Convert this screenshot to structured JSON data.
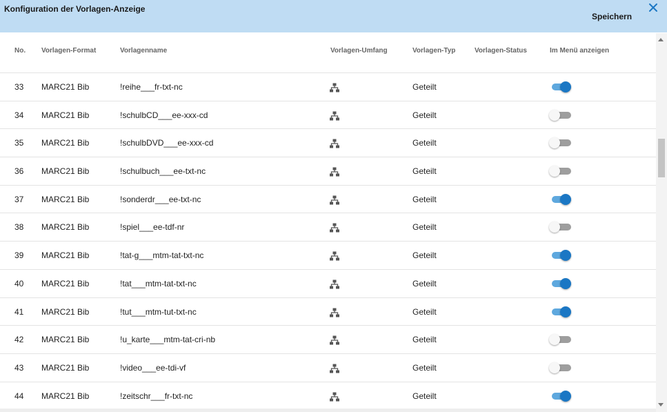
{
  "dialog": {
    "title": "Konfiguration der Vorlagen-Anzeige",
    "save_label": "Speichern",
    "close_icon": "close-icon",
    "accent_color": "#1b77c4",
    "header_color": "#bfdcf3"
  },
  "table": {
    "headers": {
      "no": "No.",
      "format": "Vorlagen-Format",
      "name": "Vorlagenname",
      "scope": "Vorlagen-Umfang",
      "type": "Vorlagen-Typ",
      "status": "Vorlagen-Status",
      "menu": "Im Menü anzeigen"
    },
    "rows": [
      {
        "no": "33",
        "format": "MARC21 Bib",
        "name": "!reihe___fr-txt-nc",
        "scope_icon": "hierarchy-icon",
        "type": "Geteilt",
        "status": "",
        "in_menu": true
      },
      {
        "no": "34",
        "format": "MARC21 Bib",
        "name": "!schulbCD___ee-xxx-cd",
        "scope_icon": "hierarchy-icon",
        "type": "Geteilt",
        "status": "",
        "in_menu": false
      },
      {
        "no": "35",
        "format": "MARC21 Bib",
        "name": "!schulbDVD___ee-xxx-cd",
        "scope_icon": "hierarchy-icon",
        "type": "Geteilt",
        "status": "",
        "in_menu": false
      },
      {
        "no": "36",
        "format": "MARC21 Bib",
        "name": "!schulbuch___ee-txt-nc",
        "scope_icon": "hierarchy-icon",
        "type": "Geteilt",
        "status": "",
        "in_menu": false
      },
      {
        "no": "37",
        "format": "MARC21 Bib",
        "name": "!sonderdr___ee-txt-nc",
        "scope_icon": "hierarchy-icon",
        "type": "Geteilt",
        "status": "",
        "in_menu": true
      },
      {
        "no": "38",
        "format": "MARC21 Bib",
        "name": "!spiel___ee-tdf-nr",
        "scope_icon": "hierarchy-icon",
        "type": "Geteilt",
        "status": "",
        "in_menu": false
      },
      {
        "no": "39",
        "format": "MARC21 Bib",
        "name": "!tat-g___mtm-tat-txt-nc",
        "scope_icon": "hierarchy-icon",
        "type": "Geteilt",
        "status": "",
        "in_menu": true
      },
      {
        "no": "40",
        "format": "MARC21 Bib",
        "name": "!tat___mtm-tat-txt-nc",
        "scope_icon": "hierarchy-icon",
        "type": "Geteilt",
        "status": "",
        "in_menu": true
      },
      {
        "no": "41",
        "format": "MARC21 Bib",
        "name": "!tut___mtm-tut-txt-nc",
        "scope_icon": "hierarchy-icon",
        "type": "Geteilt",
        "status": "",
        "in_menu": true
      },
      {
        "no": "42",
        "format": "MARC21 Bib",
        "name": "!u_karte___mtm-tat-cri-nb",
        "scope_icon": "hierarchy-icon",
        "type": "Geteilt",
        "status": "",
        "in_menu": false
      },
      {
        "no": "43",
        "format": "MARC21 Bib",
        "name": "!video___ee-tdi-vf",
        "scope_icon": "hierarchy-icon",
        "type": "Geteilt",
        "status": "",
        "in_menu": false
      },
      {
        "no": "44",
        "format": "MARC21 Bib",
        "name": "!zeitschr___fr-txt-nc",
        "scope_icon": "hierarchy-icon",
        "type": "Geteilt",
        "status": "",
        "in_menu": true
      }
    ]
  }
}
